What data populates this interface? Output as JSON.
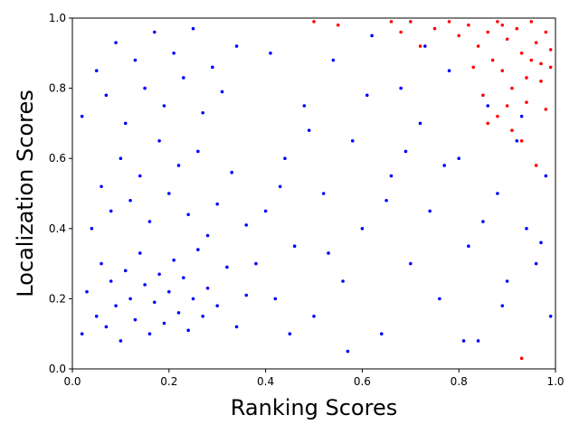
{
  "chart_data": {
    "type": "scatter",
    "xlabel": "Ranking Scores",
    "ylabel": "Localization Scores",
    "xlim": [
      0.0,
      1.0
    ],
    "ylim": [
      0.0,
      1.0
    ],
    "xticks": [
      "0.0",
      "0.2",
      "0.4",
      "0.6",
      "0.8",
      "1.0"
    ],
    "yticks": [
      "0.0",
      "0.2",
      "0.4",
      "0.6",
      "0.8",
      "1.0"
    ],
    "grid": false,
    "legend": "none",
    "series": [
      {
        "color": "#0000ff",
        "points": [
          [
            0.02,
            0.1
          ],
          [
            0.03,
            0.22
          ],
          [
            0.05,
            0.15
          ],
          [
            0.06,
            0.3
          ],
          [
            0.07,
            0.12
          ],
          [
            0.08,
            0.25
          ],
          [
            0.09,
            0.18
          ],
          [
            0.1,
            0.08
          ],
          [
            0.11,
            0.28
          ],
          [
            0.12,
            0.2
          ],
          [
            0.13,
            0.14
          ],
          [
            0.14,
            0.33
          ],
          [
            0.15,
            0.24
          ],
          [
            0.16,
            0.1
          ],
          [
            0.17,
            0.19
          ],
          [
            0.18,
            0.27
          ],
          [
            0.19,
            0.13
          ],
          [
            0.2,
            0.22
          ],
          [
            0.21,
            0.31
          ],
          [
            0.22,
            0.16
          ],
          [
            0.23,
            0.26
          ],
          [
            0.24,
            0.11
          ],
          [
            0.25,
            0.2
          ],
          [
            0.26,
            0.34
          ],
          [
            0.27,
            0.15
          ],
          [
            0.28,
            0.23
          ],
          [
            0.3,
            0.18
          ],
          [
            0.32,
            0.29
          ],
          [
            0.34,
            0.12
          ],
          [
            0.36,
            0.21
          ],
          [
            0.04,
            0.4
          ],
          [
            0.06,
            0.52
          ],
          [
            0.08,
            0.45
          ],
          [
            0.1,
            0.6
          ],
          [
            0.12,
            0.48
          ],
          [
            0.14,
            0.55
          ],
          [
            0.16,
            0.42
          ],
          [
            0.18,
            0.65
          ],
          [
            0.2,
            0.5
          ],
          [
            0.22,
            0.58
          ],
          [
            0.24,
            0.44
          ],
          [
            0.26,
            0.62
          ],
          [
            0.28,
            0.38
          ],
          [
            0.3,
            0.47
          ],
          [
            0.33,
            0.56
          ],
          [
            0.36,
            0.41
          ],
          [
            0.02,
            0.72
          ],
          [
            0.05,
            0.85
          ],
          [
            0.07,
            0.78
          ],
          [
            0.09,
            0.93
          ],
          [
            0.11,
            0.7
          ],
          [
            0.13,
            0.88
          ],
          [
            0.15,
            0.8
          ],
          [
            0.17,
            0.96
          ],
          [
            0.19,
            0.75
          ],
          [
            0.21,
            0.9
          ],
          [
            0.23,
            0.83
          ],
          [
            0.25,
            0.97
          ],
          [
            0.27,
            0.73
          ],
          [
            0.29,
            0.86
          ],
          [
            0.31,
            0.79
          ],
          [
            0.34,
            0.92
          ],
          [
            0.38,
            0.3
          ],
          [
            0.4,
            0.45
          ],
          [
            0.42,
            0.2
          ],
          [
            0.44,
            0.6
          ],
          [
            0.46,
            0.35
          ],
          [
            0.48,
            0.75
          ],
          [
            0.5,
            0.15
          ],
          [
            0.52,
            0.5
          ],
          [
            0.54,
            0.88
          ],
          [
            0.56,
            0.25
          ],
          [
            0.58,
            0.65
          ],
          [
            0.6,
            0.4
          ],
          [
            0.62,
            0.95
          ],
          [
            0.64,
            0.1
          ],
          [
            0.66,
            0.55
          ],
          [
            0.68,
            0.8
          ],
          [
            0.7,
            0.3
          ],
          [
            0.72,
            0.7
          ],
          [
            0.74,
            0.45
          ],
          [
            0.76,
            0.2
          ],
          [
            0.78,
            0.85
          ],
          [
            0.8,
            0.6
          ],
          [
            0.82,
            0.35
          ],
          [
            0.84,
            0.08
          ],
          [
            0.86,
            0.75
          ],
          [
            0.88,
            0.5
          ],
          [
            0.9,
            0.25
          ],
          [
            0.92,
            0.65
          ],
          [
            0.94,
            0.4
          ],
          [
            0.96,
            0.3
          ],
          [
            0.98,
            0.55
          ],
          [
            0.99,
            0.15
          ],
          [
            0.41,
            0.9
          ],
          [
            0.45,
            0.1
          ],
          [
            0.49,
            0.68
          ],
          [
            0.53,
            0.33
          ],
          [
            0.57,
            0.05
          ],
          [
            0.61,
            0.78
          ],
          [
            0.65,
            0.48
          ],
          [
            0.69,
            0.62
          ],
          [
            0.73,
            0.92
          ],
          [
            0.77,
            0.58
          ],
          [
            0.81,
            0.08
          ],
          [
            0.85,
            0.42
          ],
          [
            0.89,
            0.18
          ],
          [
            0.93,
            0.72
          ],
          [
            0.97,
            0.36
          ],
          [
            0.43,
            0.52
          ]
        ]
      },
      {
        "color": "#ff0000",
        "points": [
          [
            0.82,
            0.98
          ],
          [
            0.84,
            0.92
          ],
          [
            0.86,
            0.96
          ],
          [
            0.87,
            0.88
          ],
          [
            0.88,
            0.99
          ],
          [
            0.89,
            0.85
          ],
          [
            0.9,
            0.94
          ],
          [
            0.91,
            0.8
          ],
          [
            0.92,
            0.97
          ],
          [
            0.93,
            0.9
          ],
          [
            0.94,
            0.83
          ],
          [
            0.95,
            0.99
          ],
          [
            0.96,
            0.93
          ],
          [
            0.97,
            0.87
          ],
          [
            0.98,
            0.96
          ],
          [
            0.99,
            0.91
          ],
          [
            0.85,
            0.78
          ],
          [
            0.88,
            0.72
          ],
          [
            0.91,
            0.68
          ],
          [
            0.94,
            0.76
          ],
          [
            0.97,
            0.82
          ],
          [
            0.99,
            0.86
          ],
          [
            0.8,
            0.95
          ],
          [
            0.78,
            0.99
          ],
          [
            0.83,
            0.86
          ],
          [
            0.86,
            0.7
          ],
          [
            0.9,
            0.75
          ],
          [
            0.93,
            0.65
          ],
          [
            0.96,
            0.58
          ],
          [
            0.98,
            0.74
          ],
          [
            0.72,
            0.92
          ],
          [
            0.75,
            0.97
          ],
          [
            0.7,
            0.99
          ],
          [
            0.68,
            0.96
          ],
          [
            0.66,
            0.99
          ],
          [
            0.55,
            0.98
          ],
          [
            0.5,
            0.99
          ],
          [
            0.93,
            0.03
          ],
          [
            0.89,
            0.98
          ],
          [
            0.95,
            0.88
          ]
        ]
      }
    ]
  }
}
